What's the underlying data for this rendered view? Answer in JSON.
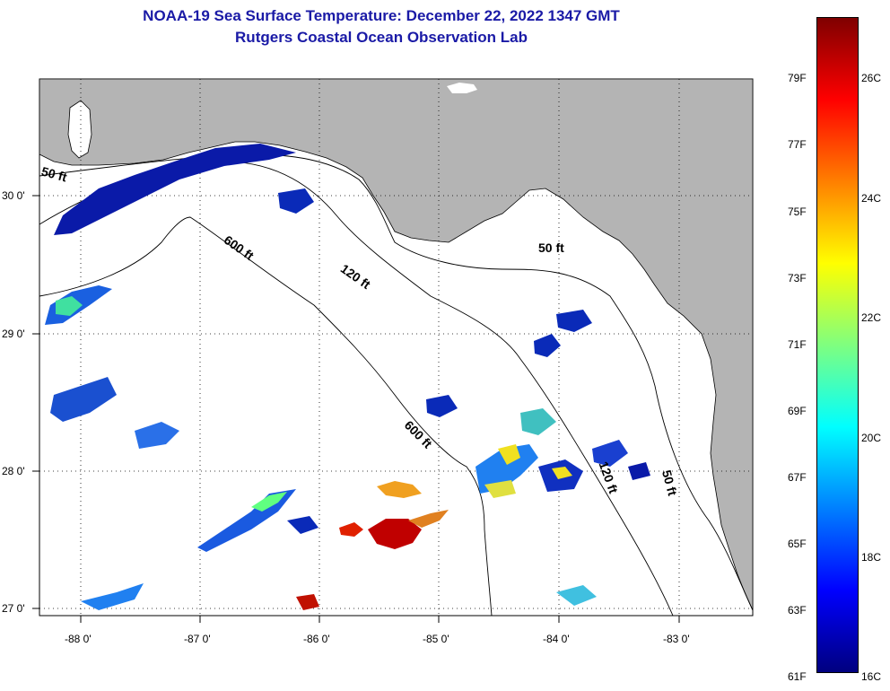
{
  "title": {
    "line1": "NOAA-19 Sea Surface Temperature:  December 22, 2022 1347 GMT",
    "line2": "Rutgers Coastal Ocean Observation Lab"
  },
  "axes": {
    "lon_labels": [
      "-88 0'",
      "-87 0'",
      "-86 0'",
      "-85 0'",
      "-84 0'",
      "-83 0'"
    ],
    "lat_labels": [
      "30 0'",
      "29 0'",
      "28 0'",
      "27 0'"
    ]
  },
  "contours": {
    "labels": [
      "50 ft",
      "600 ft",
      "120 ft",
      "50 ft",
      "600 ft",
      "120 ft",
      "50 ft"
    ]
  },
  "colorbar": {
    "fahrenheit": [
      "79F",
      "77F",
      "75F",
      "73F",
      "71F",
      "69F",
      "67F",
      "65F",
      "63F",
      "61F"
    ],
    "celsius": [
      "26C",
      "24C",
      "22C",
      "20C",
      "18C",
      "16C"
    ]
  },
  "colors": {
    "land": "#b4b4b4",
    "ocean": "#ffffff",
    "title": "#1a1aa6"
  }
}
